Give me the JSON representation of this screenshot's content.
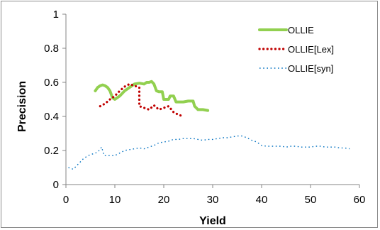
{
  "chart_data": {
    "type": "line",
    "title": "",
    "xlabel": "Yield",
    "ylabel": "Precision",
    "xlim": [
      0,
      60
    ],
    "ylim": [
      0,
      1
    ],
    "xticks": [
      0,
      10,
      20,
      30,
      40,
      50,
      60
    ],
    "yticks": [
      0,
      0.2,
      0.4,
      0.6,
      0.8,
      1
    ],
    "ytick_labels": [
      "0",
      "0.2",
      "0.4",
      "0.6",
      "0.8",
      "1"
    ],
    "grid": false,
    "legend_position": "top-right",
    "series": [
      {
        "name": "OLLIE",
        "color": "#92d050",
        "style": "solid-thick",
        "points": [
          [
            6,
            0.55
          ],
          [
            6.5,
            0.57
          ],
          [
            7,
            0.58
          ],
          [
            7.5,
            0.585
          ],
          [
            8,
            0.58
          ],
          [
            8.5,
            0.57
          ],
          [
            9,
            0.55
          ],
          [
            9.5,
            0.51
          ],
          [
            10,
            0.5
          ],
          [
            11,
            0.52
          ],
          [
            12,
            0.55
          ],
          [
            13,
            0.57
          ],
          [
            14,
            0.59
          ],
          [
            15,
            0.595
          ],
          [
            16,
            0.59
          ],
          [
            16.5,
            0.6
          ],
          [
            17,
            0.6
          ],
          [
            17.5,
            0.605
          ],
          [
            18,
            0.59
          ],
          [
            18.5,
            0.55
          ],
          [
            19,
            0.545
          ],
          [
            19.7,
            0.545
          ],
          [
            20,
            0.5
          ],
          [
            21,
            0.5
          ],
          [
            21.3,
            0.52
          ],
          [
            22,
            0.52
          ],
          [
            22.5,
            0.485
          ],
          [
            24,
            0.485
          ],
          [
            25,
            0.49
          ],
          [
            26,
            0.49
          ],
          [
            26.3,
            0.46
          ],
          [
            27,
            0.44
          ],
          [
            28,
            0.44
          ],
          [
            29,
            0.435
          ]
        ]
      },
      {
        "name": "OLLIE[Lex]",
        "color": "#c00000",
        "style": "dotted",
        "points": [
          [
            7,
            0.46
          ],
          [
            8,
            0.475
          ],
          [
            9,
            0.5
          ],
          [
            10,
            0.52
          ],
          [
            11,
            0.55
          ],
          [
            12,
            0.575
          ],
          [
            13,
            0.59
          ],
          [
            14,
            0.58
          ],
          [
            15,
            0.57
          ],
          [
            15,
            0.46
          ],
          [
            16,
            0.45
          ],
          [
            17,
            0.44
          ],
          [
            18,
            0.465
          ],
          [
            19,
            0.44
          ],
          [
            20,
            0.45
          ],
          [
            21,
            0.46
          ],
          [
            22,
            0.425
          ],
          [
            23,
            0.41
          ],
          [
            24,
            0.4
          ]
        ]
      },
      {
        "name": "OLLIE[syn]",
        "color": "#0070c0",
        "style": "dotted-thin",
        "points": [
          [
            0.5,
            0.1
          ],
          [
            1.5,
            0.09
          ],
          [
            2.5,
            0.12
          ],
          [
            3.5,
            0.15
          ],
          [
            4.5,
            0.17
          ],
          [
            5.5,
            0.18
          ],
          [
            6.5,
            0.19
          ],
          [
            7.3,
            0.22
          ],
          [
            7.8,
            0.17
          ],
          [
            9,
            0.17
          ],
          [
            10,
            0.17
          ],
          [
            11,
            0.185
          ],
          [
            12,
            0.2
          ],
          [
            13,
            0.205
          ],
          [
            14,
            0.21
          ],
          [
            15,
            0.215
          ],
          [
            16,
            0.21
          ],
          [
            17,
            0.22
          ],
          [
            18,
            0.23
          ],
          [
            19,
            0.245
          ],
          [
            20,
            0.25
          ],
          [
            21,
            0.255
          ],
          [
            22,
            0.265
          ],
          [
            23,
            0.265
          ],
          [
            24,
            0.27
          ],
          [
            25,
            0.27
          ],
          [
            26,
            0.27
          ],
          [
            27,
            0.265
          ],
          [
            28,
            0.26
          ],
          [
            29,
            0.265
          ],
          [
            30,
            0.265
          ],
          [
            31,
            0.27
          ],
          [
            32,
            0.275
          ],
          [
            33,
            0.275
          ],
          [
            34,
            0.28
          ],
          [
            35,
            0.285
          ],
          [
            36,
            0.285
          ],
          [
            37,
            0.275
          ],
          [
            38,
            0.26
          ],
          [
            39,
            0.25
          ],
          [
            40,
            0.23
          ],
          [
            41,
            0.225
          ],
          [
            42,
            0.225
          ],
          [
            43,
            0.225
          ],
          [
            44,
            0.225
          ],
          [
            45,
            0.22
          ],
          [
            46,
            0.225
          ],
          [
            47,
            0.225
          ],
          [
            48,
            0.22
          ],
          [
            49,
            0.22
          ],
          [
            50,
            0.22
          ],
          [
            51,
            0.225
          ],
          [
            52,
            0.225
          ],
          [
            53,
            0.22
          ],
          [
            54,
            0.22
          ],
          [
            55,
            0.22
          ],
          [
            56,
            0.215
          ],
          [
            57,
            0.215
          ],
          [
            58,
            0.21
          ]
        ]
      }
    ]
  }
}
